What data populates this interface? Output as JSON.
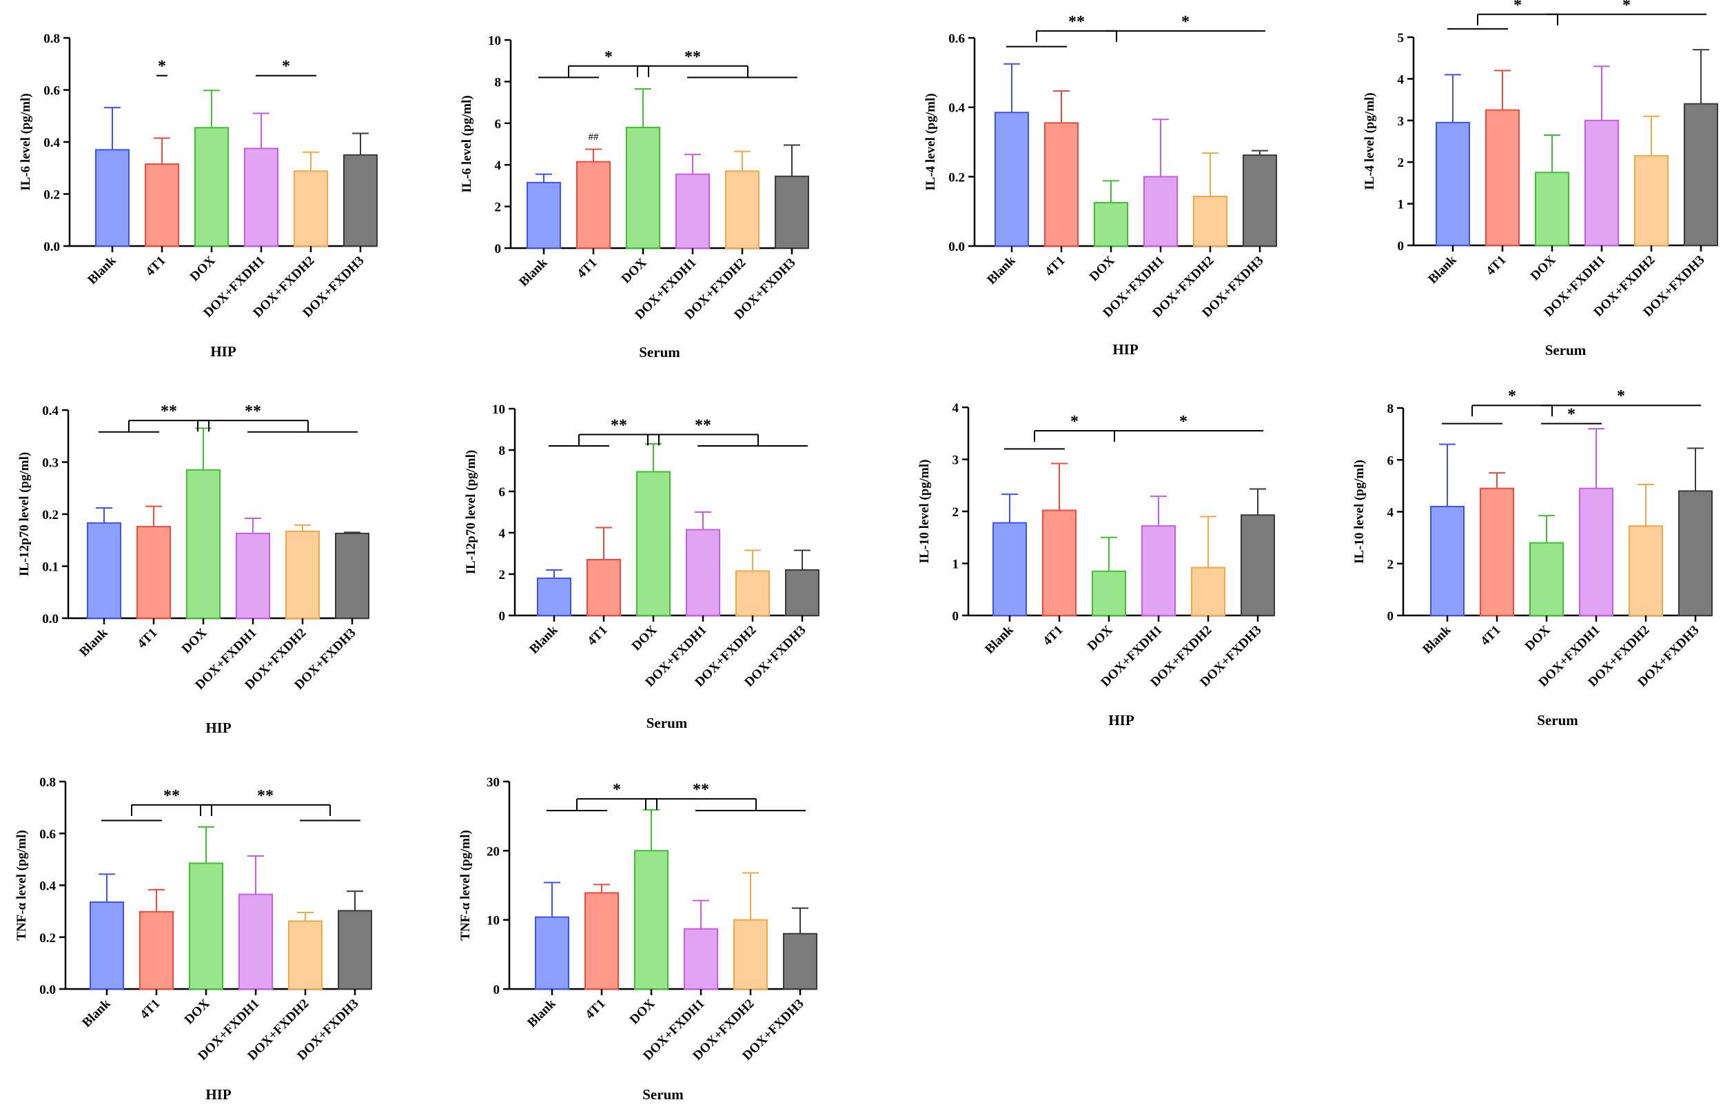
{
  "chart_data": [
    {
      "type": "bar",
      "panel": "il6-hip",
      "categories": [
        "Blank",
        "4T1",
        "DOX",
        "DOX+FXDH1",
        "DOX+FXDH2",
        "DOX+FXDH3"
      ],
      "values": [
        0.37,
        0.315,
        0.455,
        0.375,
        0.288,
        0.35
      ],
      "errors": [
        0.162,
        0.1,
        0.143,
        0.135,
        0.073,
        0.083
      ],
      "ylabel": "IL-6 level (pg/ml)",
      "xlabel": "HIP",
      "ylim": [
        0,
        0.8
      ],
      "yticks": [
        "0.0",
        "0.2",
        "0.4",
        "0.6",
        "0.8"
      ],
      "brackets": [
        {
          "a": 1,
          "b": 1,
          "h": 0.655,
          "label": "*",
          "drops": false
        },
        {
          "a": 3,
          "b": 4,
          "h": 0.655,
          "label": "*",
          "drops": false
        }
      ],
      "annotations": [],
      "grid": false,
      "legend": "none"
    },
    {
      "type": "bar",
      "panel": "il6-serum",
      "categories": [
        "Blank",
        "4T1",
        "DOX",
        "DOX+FXDH1",
        "DOX+FXDH2",
        "DOX+FXDH3"
      ],
      "values": [
        3.15,
        4.15,
        5.8,
        3.55,
        3.7,
        3.45
      ],
      "errors": [
        0.4,
        0.6,
        1.85,
        0.95,
        0.95,
        1.5
      ],
      "ylabel": "IL-6 level (pg/ml)",
      "xlabel": "Serum",
      "ylim": [
        0,
        10
      ],
      "yticks": [
        "0",
        "2",
        "4",
        "6",
        "8",
        "10"
      ],
      "brackets": [
        {
          "a": 0,
          "b": 1,
          "h": 8.2,
          "label": "",
          "drops": false
        },
        {
          "a": 0.5,
          "b": 2,
          "h": 8.75,
          "label": "*",
          "drops": true
        },
        {
          "a": 3,
          "b": 5,
          "h": 8.2,
          "label": "",
          "drops": false
        },
        {
          "a": 2,
          "b": 4,
          "h": 8.75,
          "label": "**",
          "drops": true
        }
      ],
      "annotations": [
        {
          "cat": 1,
          "value": 5.2,
          "text": "##"
        }
      ],
      "grid": false,
      "legend": "none"
    },
    {
      "type": "bar",
      "panel": "il4-hip",
      "categories": [
        "Blank",
        "4T1",
        "DOX",
        "DOX+FXDH1",
        "DOX+FXDH2",
        "DOX+FXDH3"
      ],
      "values": [
        0.385,
        0.355,
        0.125,
        0.2,
        0.143,
        0.262
      ],
      "errors": [
        0.14,
        0.092,
        0.063,
        0.165,
        0.125,
        0.013
      ],
      "ylabel": "IL-4 level (pg/ml)",
      "xlabel": "HIP",
      "ylim": [
        0,
        0.6
      ],
      "yticks": [
        "0.0",
        "0.2",
        "0.4",
        "0.6"
      ],
      "brackets": [
        {
          "a": 0,
          "b": 1,
          "h": 0.575,
          "label": "",
          "drops": false
        },
        {
          "a": 0.5,
          "b": 2,
          "h": 0.62,
          "label": "**",
          "drops": true
        },
        {
          "a": 2,
          "b": 5,
          "h": 0.62,
          "label": "*",
          "drops": false
        }
      ],
      "annotations": [],
      "grid": false,
      "legend": "none"
    },
    {
      "type": "bar",
      "panel": "il4-serum",
      "categories": [
        "Blank",
        "4T1",
        "DOX",
        "DOX+FXDH1",
        "DOX+FXDH2",
        "DOX+FXDH3"
      ],
      "values": [
        2.95,
        3.25,
        1.75,
        3.0,
        2.15,
        3.4
      ],
      "errors": [
        1.15,
        0.95,
        0.9,
        1.3,
        0.95,
        1.3
      ],
      "ylabel": "IL-4 level (pg/ml)",
      "xlabel": "Serum",
      "ylim": [
        0,
        5
      ],
      "yticks": [
        "0",
        "1",
        "2",
        "3",
        "4",
        "5"
      ],
      "brackets": [
        {
          "a": 0,
          "b": 1,
          "h": 5.2,
          "label": "",
          "drops": false
        },
        {
          "a": 0.5,
          "b": 2,
          "h": 5.55,
          "label": "*",
          "drops": true
        },
        {
          "a": 2,
          "b": 5,
          "h": 5.55,
          "label": "*",
          "drops": false
        }
      ],
      "annotations": [],
      "grid": false,
      "legend": "none"
    },
    {
      "type": "bar",
      "panel": "il12p70-hip",
      "categories": [
        "Blank",
        "4T1",
        "DOX",
        "DOX+FXDH1",
        "DOX+FXDH2",
        "DOX+FXDH3"
      ],
      "values": [
        0.183,
        0.176,
        0.285,
        0.163,
        0.167,
        0.163
      ],
      "errors": [
        0.029,
        0.039,
        0.08,
        0.029,
        0.012,
        0.002
      ],
      "ylabel": "IL-12p70 level (pg/ml)",
      "xlabel": "HIP",
      "ylim": [
        0,
        0.4
      ],
      "yticks": [
        "0.0",
        "0.1",
        "0.2",
        "0.3",
        "0.4"
      ],
      "brackets": [
        {
          "a": 0,
          "b": 1,
          "h": 0.358,
          "label": "",
          "drops": false
        },
        {
          "a": 0.5,
          "b": 2,
          "h": 0.38,
          "label": "**",
          "drops": true
        },
        {
          "a": 3,
          "b": 5,
          "h": 0.358,
          "label": "",
          "drops": false
        },
        {
          "a": 2,
          "b": 4,
          "h": 0.38,
          "label": "**",
          "drops": true
        }
      ],
      "annotations": [],
      "grid": false,
      "legend": "none"
    },
    {
      "type": "bar",
      "panel": "il12p70-serum",
      "categories": [
        "Blank",
        "4T1",
        "DOX",
        "DOX+FXDH1",
        "DOX+FXDH2",
        "DOX+FXDH3"
      ],
      "values": [
        1.8,
        2.7,
        6.95,
        4.15,
        2.15,
        2.2
      ],
      "errors": [
        0.4,
        1.55,
        1.35,
        0.85,
        1.0,
        0.95
      ],
      "ylabel": "IL-12p70 level (pg/ml)",
      "xlabel": "Serum",
      "ylim": [
        0,
        10
      ],
      "yticks": [
        "0",
        "2",
        "4",
        "6",
        "8",
        "10"
      ],
      "brackets": [
        {
          "a": 0,
          "b": 1,
          "h": 8.2,
          "label": "",
          "drops": false
        },
        {
          "a": 0.5,
          "b": 2,
          "h": 8.75,
          "label": "**",
          "drops": true
        },
        {
          "a": 3,
          "b": 5,
          "h": 8.2,
          "label": "",
          "drops": false
        },
        {
          "a": 2,
          "b": 4,
          "h": 8.75,
          "label": "**",
          "drops": true
        }
      ],
      "annotations": [],
      "grid": false,
      "legend": "none"
    },
    {
      "type": "bar",
      "panel": "il10-hip",
      "categories": [
        "Blank",
        "4T1",
        "DOX",
        "DOX+FXDH1",
        "DOX+FXDH2",
        "DOX+FXDH3"
      ],
      "values": [
        1.78,
        2.02,
        0.85,
        1.72,
        0.92,
        1.93
      ],
      "errors": [
        0.55,
        0.9,
        0.65,
        0.57,
        0.98,
        0.5
      ],
      "ylabel": "IL-10 level (pg/ml)",
      "xlabel": "HIP",
      "ylim": [
        0,
        4
      ],
      "yticks": [
        "0",
        "1",
        "2",
        "3",
        "4"
      ],
      "brackets": [
        {
          "a": 0,
          "b": 1,
          "h": 3.2,
          "label": "",
          "drops": false
        },
        {
          "a": 0.5,
          "b": 2,
          "h": 3.55,
          "label": "*",
          "drops": true
        },
        {
          "a": 2,
          "b": 5,
          "h": 3.55,
          "label": "*",
          "drops": false
        }
      ],
      "annotations": [],
      "grid": false,
      "legend": "none"
    },
    {
      "type": "bar",
      "panel": "il10-serum",
      "categories": [
        "Blank",
        "4T1",
        "DOX",
        "DOX+FXDH1",
        "DOX+FXDH2",
        "DOX+FXDH3"
      ],
      "values": [
        4.2,
        4.9,
        2.8,
        4.9,
        3.45,
        4.8
      ],
      "errors": [
        2.4,
        0.6,
        1.05,
        2.3,
        1.6,
        1.65
      ],
      "ylabel": "IL-10 level (pg/ml)",
      "xlabel": "Serum",
      "ylim": [
        0,
        8
      ],
      "yticks": [
        "0",
        "2",
        "4",
        "6",
        "8"
      ],
      "brackets": [
        {
          "a": 0,
          "b": 1,
          "h": 7.4,
          "label": "",
          "drops": false
        },
        {
          "a": 0.5,
          "b": 2,
          "h": 8.1,
          "label": "*",
          "drops": true
        },
        {
          "a": 2,
          "b": 5,
          "h": 8.1,
          "label": "*",
          "drops": false
        },
        {
          "a": 2,
          "b": 3,
          "h": 7.4,
          "label": "*",
          "drops": false
        }
      ],
      "annotations": [],
      "grid": false,
      "legend": "none"
    },
    {
      "type": "bar",
      "panel": "tnfa-hip",
      "categories": [
        "Blank",
        "4T1",
        "DOX",
        "DOX+FXDH1",
        "DOX+FXDH2",
        "DOX+FXDH3"
      ],
      "values": [
        0.335,
        0.298,
        0.485,
        0.365,
        0.262,
        0.302
      ],
      "errors": [
        0.108,
        0.085,
        0.14,
        0.148,
        0.033,
        0.075
      ],
      "ylabel": "TNF-α level (pg/ml)",
      "xlabel": "HIP",
      "ylim": [
        0,
        0.8
      ],
      "yticks": [
        "0.0",
        "0.2",
        "0.4",
        "0.6",
        "0.8"
      ],
      "brackets": [
        {
          "a": 0,
          "b": 1,
          "h": 0.65,
          "label": "",
          "drops": false
        },
        {
          "a": 0.5,
          "b": 2,
          "h": 0.71,
          "label": "**",
          "drops": true
        },
        {
          "a": 4,
          "b": 5,
          "h": 0.65,
          "label": "",
          "drops": false
        },
        {
          "a": 2,
          "b": 4.5,
          "h": 0.71,
          "label": "**",
          "drops": true
        }
      ],
      "annotations": [],
      "grid": false,
      "legend": "none"
    },
    {
      "type": "bar",
      "panel": "tnfa-serum",
      "categories": [
        "Blank",
        "4T1",
        "DOX",
        "DOX+FXDH1",
        "DOX+FXDH2",
        "DOX+FXDH3"
      ],
      "values": [
        10.4,
        13.9,
        20.0,
        8.7,
        10.0,
        8.0
      ],
      "errors": [
        5.0,
        1.2,
        5.9,
        4.1,
        6.8,
        3.7
      ],
      "ylabel": "TNF-α level (pg/ml)",
      "xlabel": "Serum",
      "ylim": [
        0,
        30
      ],
      "yticks": [
        "0",
        "10",
        "20",
        "30"
      ],
      "brackets": [
        {
          "a": 0,
          "b": 1,
          "h": 25.8,
          "label": "",
          "drops": false
        },
        {
          "a": 0.5,
          "b": 2,
          "h": 27.5,
          "label": "*",
          "drops": true
        },
        {
          "a": 3,
          "b": 5,
          "h": 25.8,
          "label": "",
          "drops": false
        },
        {
          "a": 2,
          "b": 4,
          "h": 27.5,
          "label": "**",
          "drops": true
        }
      ],
      "annotations": [],
      "grid": false,
      "legend": "none"
    }
  ],
  "palette": {
    "fills": [
      "#8ca0ff",
      "#ff9a8a",
      "#99e58b",
      "#e1a4f3",
      "#ffcf9a",
      "#7b7b7b"
    ],
    "strokes": [
      "#3e52f0",
      "#f04a3a",
      "#3fc032",
      "#c85ce8",
      "#f2a844",
      "#3a3a3a"
    ]
  }
}
